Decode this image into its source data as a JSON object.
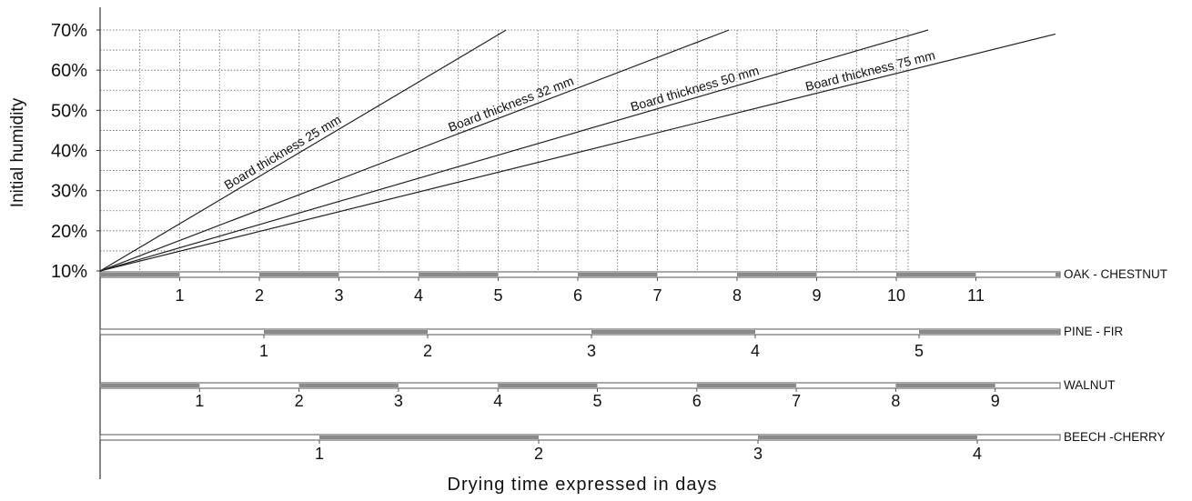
{
  "chart_data": {
    "type": "line",
    "xlabel": "Drying time expressed in days",
    "ylabel": "Initial humidity",
    "y_ticks": [
      "10%",
      "20%",
      "30%",
      "40%",
      "50%",
      "60%",
      "70%"
    ],
    "ylim": [
      10,
      70
    ],
    "grid": true,
    "series": [
      {
        "name": "Board thickness 25 mm",
        "x": [
          0,
          5.1
        ],
        "y": [
          10,
          70
        ]
      },
      {
        "name": "Board thickness 32 mm",
        "x": [
          0,
          7.9
        ],
        "y": [
          10,
          70
        ]
      },
      {
        "name": "Board thickness 50 mm",
        "x": [
          0,
          10.4
        ],
        "y": [
          10,
          70
        ]
      },
      {
        "name": "Board thickness 75 mm",
        "x": [
          0,
          12.0
        ],
        "y": [
          10,
          69
        ]
      }
    ],
    "wood_scales": [
      {
        "name": "OAK - CHESTNUT",
        "ticks": [
          "1",
          "2",
          "3",
          "4",
          "5",
          "6",
          "7",
          "8",
          "9",
          "10",
          "11"
        ],
        "days": [
          1,
          2,
          3,
          4,
          5,
          6,
          7,
          8,
          9,
          10,
          11
        ]
      },
      {
        "name": "PINE - FIR",
        "ticks": [
          "1",
          "2",
          "3",
          "4",
          "5"
        ],
        "days": [
          1,
          2,
          3,
          4,
          5
        ]
      },
      {
        "name": "WALNUT",
        "ticks": [
          "1",
          "2",
          "3",
          "4",
          "5",
          "6",
          "7",
          "8",
          "9"
        ],
        "days": [
          1,
          2,
          3,
          4,
          5,
          6,
          7,
          8,
          9
        ]
      },
      {
        "name": "BEECH -CHERRY",
        "ticks": [
          "1",
          "2",
          "3",
          "4"
        ],
        "days": [
          1,
          2,
          3,
          4
        ]
      }
    ]
  }
}
